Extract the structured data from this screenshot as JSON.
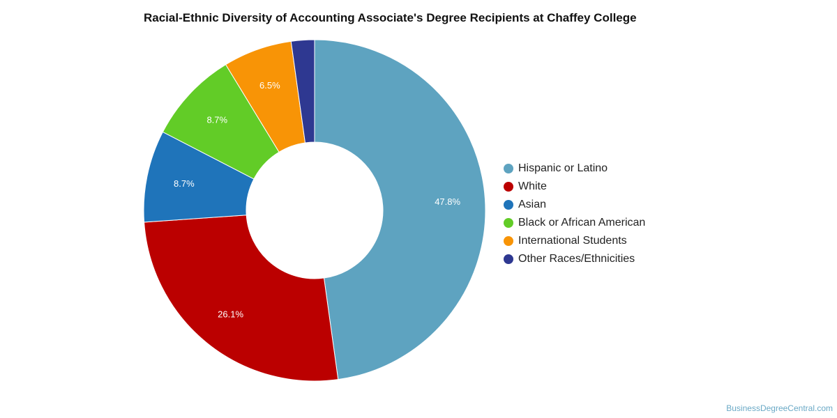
{
  "chart_data": {
    "type": "pie",
    "title": "Racial-Ethnic Diversity of Accounting Associate's Degree Recipients at Chaffey College",
    "donut": true,
    "legend_position": "right",
    "slices": [
      {
        "name": "Hispanic or Latino",
        "value": 47.8,
        "label": "47.8%",
        "color": "#5ea3c0"
      },
      {
        "name": "White",
        "value": 26.1,
        "label": "26.1%",
        "color": "#bb0000"
      },
      {
        "name": "Asian",
        "value": 8.7,
        "label": "8.7%",
        "color": "#1f74ba"
      },
      {
        "name": "Black or African American",
        "value": 8.7,
        "label": "8.7%",
        "color": "#62cc27"
      },
      {
        "name": "International Students",
        "value": 6.5,
        "label": "6.5%",
        "color": "#f89406"
      },
      {
        "name": "Other Races/Ethnicities",
        "value": 2.2,
        "label": "",
        "color": "#2e3891"
      }
    ]
  },
  "credit": "BusinessDegreeCentral.com"
}
